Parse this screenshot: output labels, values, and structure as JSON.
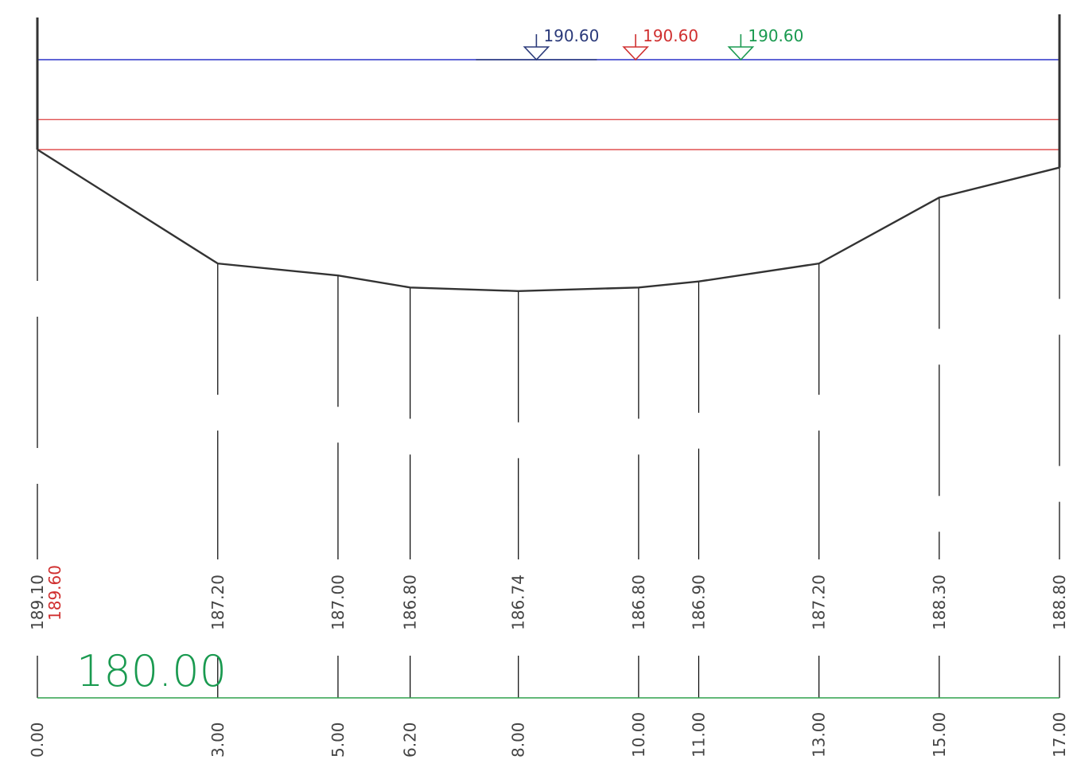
{
  "colors": {
    "ground": "#333333",
    "blue": "#2b3a7a",
    "blue_line": "#2b33c8",
    "red": "#d03030",
    "red_line": "#e05050",
    "green": "#1a9a50",
    "green_line": "#2ea04c",
    "stem": "#000000",
    "ground_label": "#444444"
  },
  "water_levels": [
    {
      "label": "190.60",
      "color": "blue",
      "station": 8.3
    },
    {
      "label": "190.60",
      "color": "red",
      "station": 9.95
    },
    {
      "label": "190.60",
      "color": "green",
      "station": 11.7
    }
  ],
  "datum": {
    "label": "180.00",
    "elevation": 180.0
  },
  "second_elevation_labels": [
    {
      "label": "189.60",
      "station": 0.0
    }
  ],
  "chart_data": {
    "type": "cross-section",
    "x_unit": "station",
    "y_unit": "elevation",
    "points": [
      {
        "x": 0.0,
        "y": 189.1,
        "x_label": "0.00",
        "y_label": "189.10"
      },
      {
        "x": 3.0,
        "y": 187.2,
        "x_label": "3.00",
        "y_label": "187.20"
      },
      {
        "x": 5.0,
        "y": 187.0,
        "x_label": "5.00",
        "y_label": "187.00"
      },
      {
        "x": 6.2,
        "y": 186.8,
        "x_label": "6.20",
        "y_label": "186.80"
      },
      {
        "x": 8.0,
        "y": 186.74,
        "x_label": "8.00",
        "y_label": "186.74"
      },
      {
        "x": 10.0,
        "y": 186.8,
        "x_label": "10.00",
        "y_label": "186.80"
      },
      {
        "x": 11.0,
        "y": 186.9,
        "x_label": "11.00",
        "y_label": "186.90"
      },
      {
        "x": 13.0,
        "y": 187.2,
        "x_label": "13.00",
        "y_label": "187.20"
      },
      {
        "x": 15.0,
        "y": 188.3,
        "x_label": "15.00",
        "y_label": "188.30"
      },
      {
        "x": 17.0,
        "y": 188.8,
        "x_label": "17.00",
        "y_label": "188.80"
      }
    ],
    "horizontal_lines": [
      {
        "elevation": 190.6,
        "color": "blue"
      },
      {
        "elevation": 189.6,
        "color": "red"
      },
      {
        "elevation": 189.1,
        "color": "red"
      }
    ],
    "xlim": [
      0,
      17
    ],
    "ylim": [
      180.0,
      190.6
    ]
  }
}
